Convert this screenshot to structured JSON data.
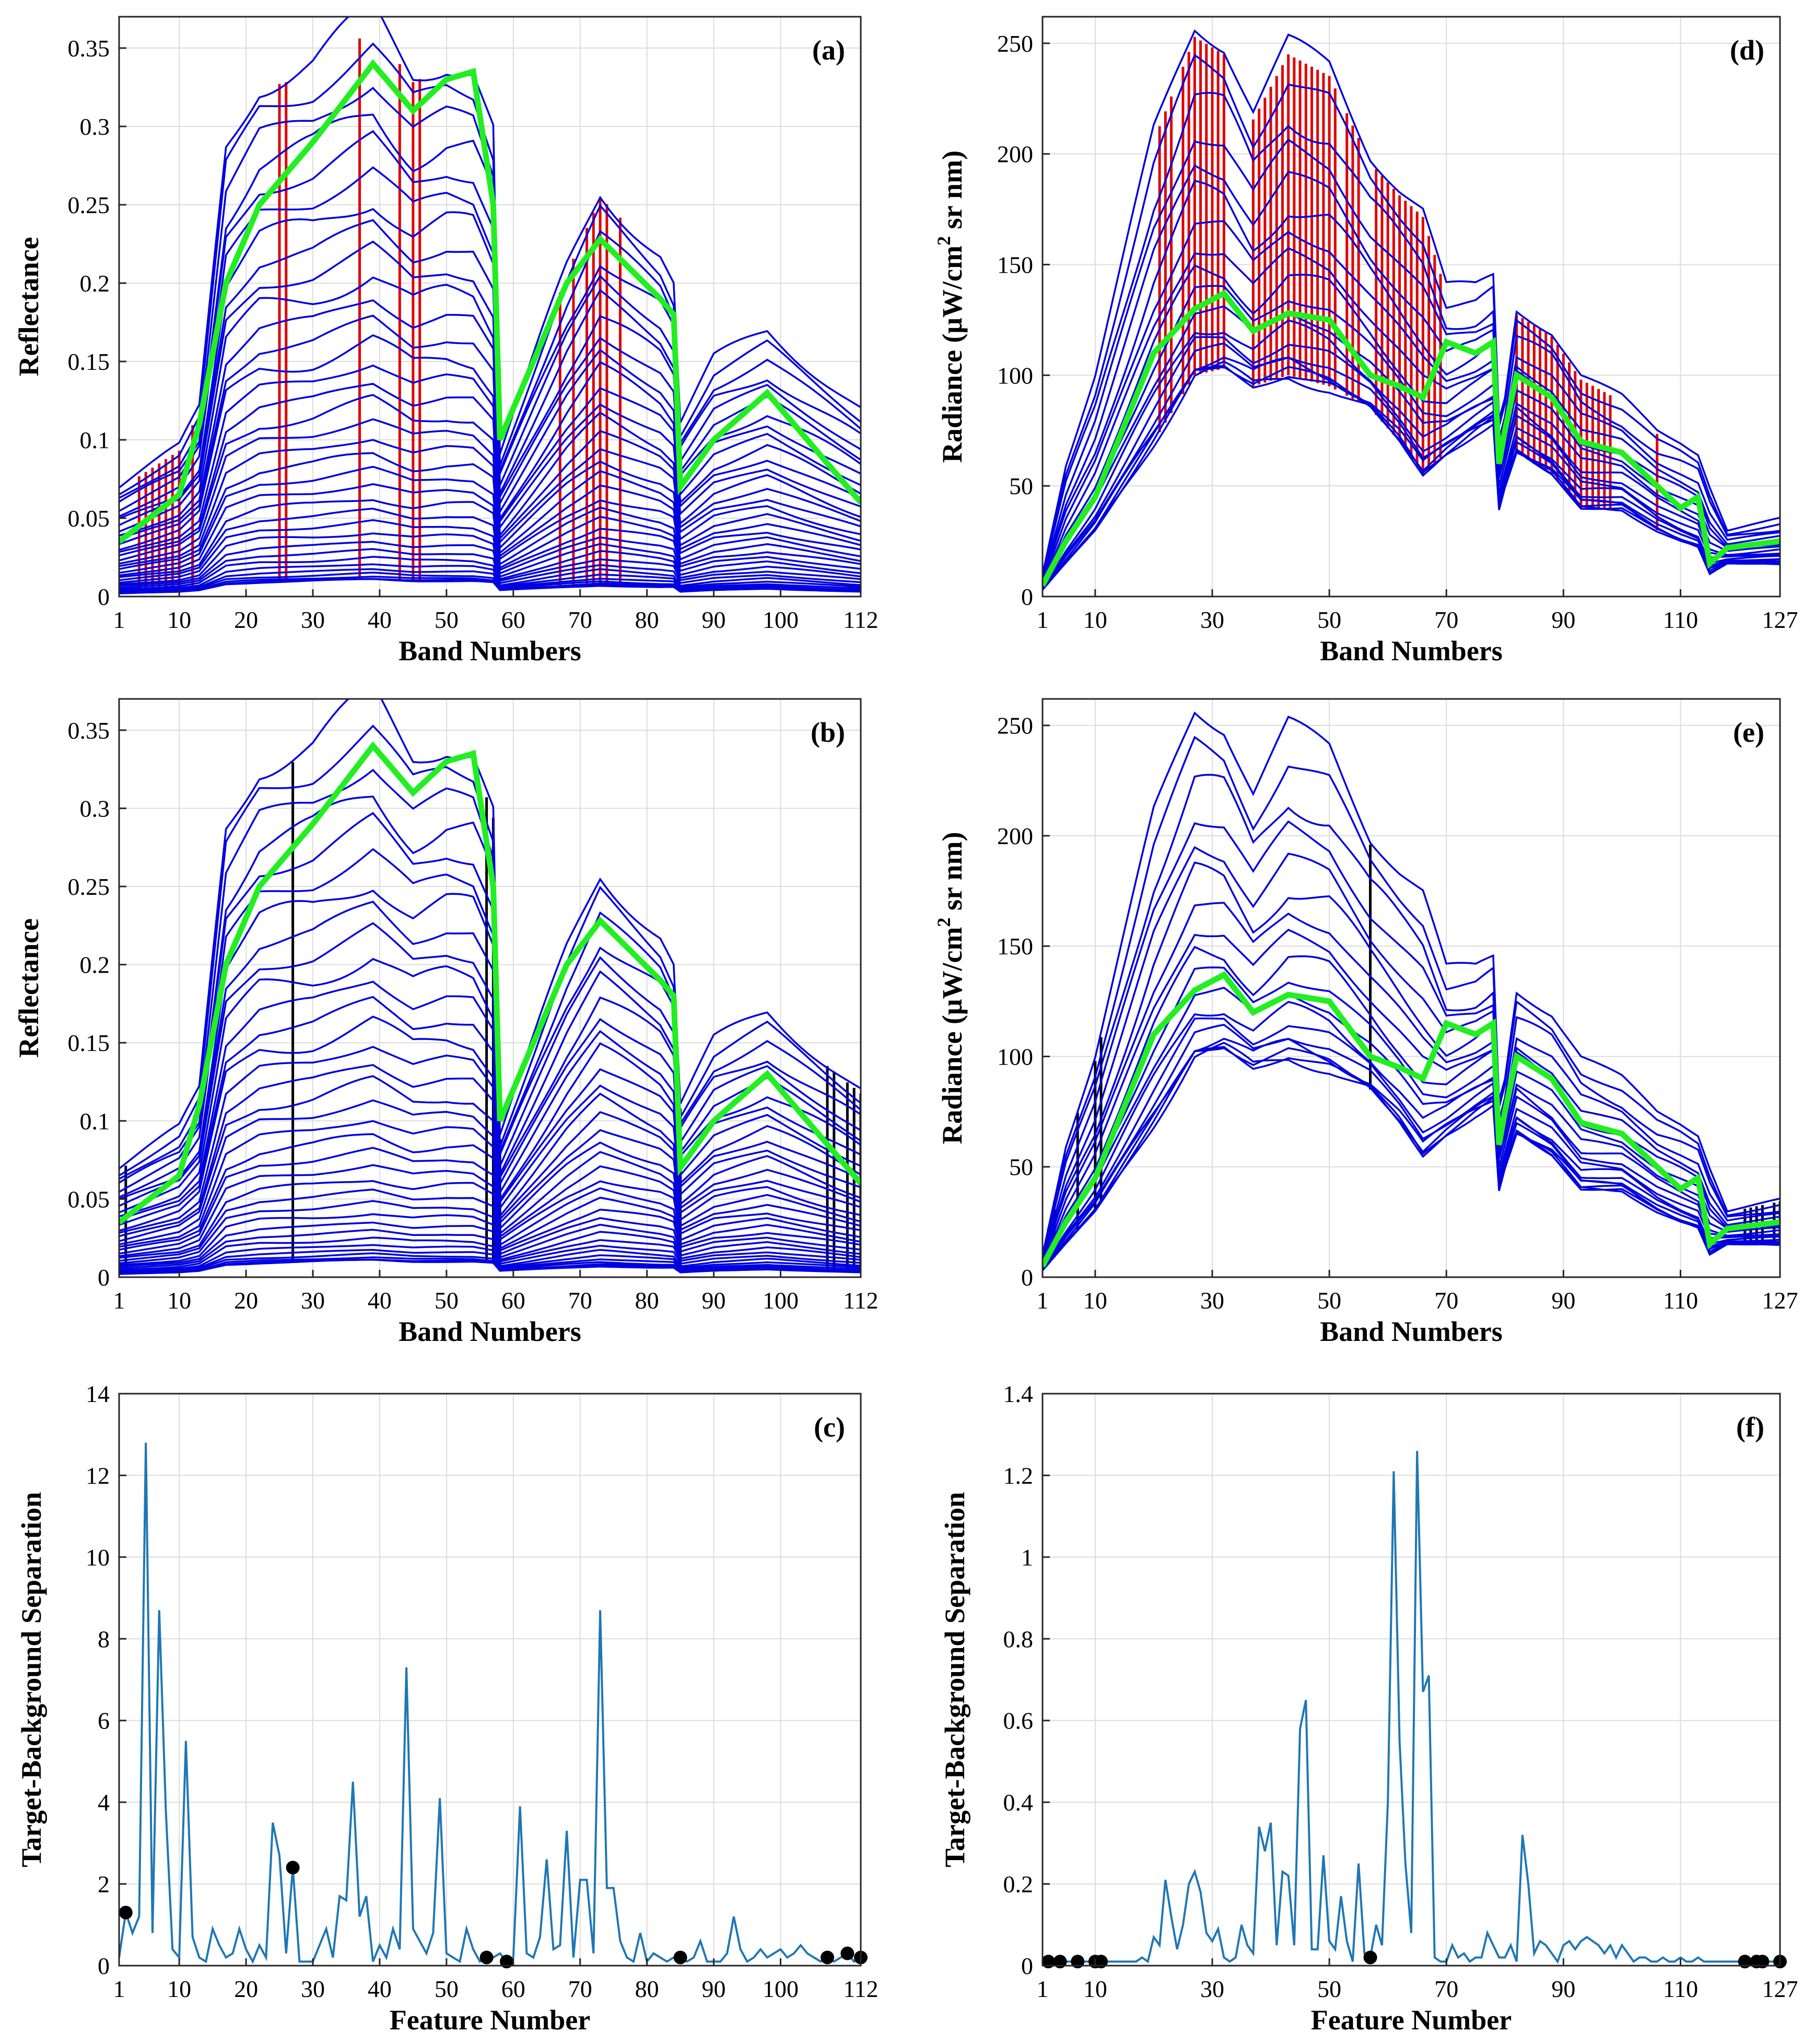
{
  "colors": {
    "spectrum": "#0000e0",
    "mean": "#22ee22",
    "selected_red": "#e00000",
    "selected_black": "#000000",
    "separation": "#1f77b4"
  },
  "chart_data": [
    {
      "id": "a",
      "panel_label": "(a)",
      "type": "line",
      "xlabel": "Band Numbers",
      "ylabel": "Reflectance",
      "xlim": [
        1,
        112
      ],
      "ylim": [
        0,
        0.37
      ],
      "xticks": [
        1,
        10,
        20,
        30,
        40,
        50,
        60,
        70,
        80,
        90,
        100,
        112
      ],
      "yticks": [
        0,
        0.05,
        0.1,
        0.15,
        0.2,
        0.25,
        0.3,
        0.35
      ],
      "ytick_labels": [
        "0",
        "0.05",
        "0.1",
        "0.15",
        "0.2",
        "0.25",
        "0.3",
        "0.35"
      ],
      "grid": true,
      "key_x": [
        1,
        10,
        13,
        17,
        22,
        30,
        39,
        45,
        50,
        54,
        57,
        58,
        68,
        73,
        82,
        84,
        85,
        90,
        98,
        112
      ],
      "series_key": [
        {
          "name": "spectrum-top",
          "values": [
            0.07,
            0.095,
            0.12,
            0.29,
            0.33,
            0.34,
            0.37,
            0.335,
            0.345,
            0.34,
            0.3,
            0.09,
            0.21,
            0.26,
            0.22,
            0.2,
            0.11,
            0.15,
            0.17,
            0.12
          ]
        },
        {
          "name": "spectrum-bottom",
          "values": [
            0.002,
            0.003,
            0.004,
            0.008,
            0.009,
            0.01,
            0.011,
            0.01,
            0.01,
            0.01,
            0.009,
            0.004,
            0.006,
            0.007,
            0.006,
            0.006,
            0.003,
            0.004,
            0.005,
            0.003
          ]
        },
        {
          "name": "mean",
          "values": [
            0.035,
            0.065,
            0.11,
            0.2,
            0.25,
            0.29,
            0.34,
            0.31,
            0.33,
            0.335,
            0.25,
            0.1,
            0.2,
            0.228,
            0.19,
            0.18,
            0.07,
            0.1,
            0.13,
            0.06
          ]
        }
      ],
      "n_spectra": 34,
      "selected_bands": [
        4,
        5,
        6,
        7,
        8,
        9,
        10,
        12,
        25,
        26,
        37,
        43,
        45,
        46,
        67,
        69,
        71,
        72,
        73,
        74,
        76
      ],
      "selected_color": "red"
    },
    {
      "id": "b",
      "panel_label": "(b)",
      "type": "line",
      "xlabel": "Band Numbers",
      "ylabel": "Reflectance",
      "xlim": [
        1,
        112
      ],
      "ylim": [
        0,
        0.37
      ],
      "xticks": [
        1,
        10,
        20,
        30,
        40,
        50,
        60,
        70,
        80,
        90,
        100,
        112
      ],
      "yticks": [
        0,
        0.05,
        0.1,
        0.15,
        0.2,
        0.25,
        0.3,
        0.35
      ],
      "ytick_labels": [
        "0",
        "0.05",
        "0.1",
        "0.15",
        "0.2",
        "0.25",
        "0.3",
        "0.35"
      ],
      "grid": true,
      "key_x": [
        1,
        10,
        13,
        17,
        22,
        30,
        39,
        45,
        50,
        54,
        57,
        58,
        68,
        73,
        82,
        84,
        85,
        90,
        98,
        112
      ],
      "series_key": [
        {
          "name": "spectrum-top",
          "values": [
            0.07,
            0.095,
            0.12,
            0.29,
            0.33,
            0.34,
            0.37,
            0.335,
            0.345,
            0.34,
            0.3,
            0.09,
            0.21,
            0.26,
            0.22,
            0.2,
            0.11,
            0.15,
            0.17,
            0.12
          ]
        },
        {
          "name": "spectrum-bottom",
          "values": [
            0.002,
            0.003,
            0.004,
            0.008,
            0.009,
            0.01,
            0.011,
            0.01,
            0.01,
            0.01,
            0.009,
            0.004,
            0.006,
            0.007,
            0.006,
            0.006,
            0.003,
            0.004,
            0.005,
            0.003
          ]
        },
        {
          "name": "mean",
          "values": [
            0.035,
            0.065,
            0.11,
            0.2,
            0.25,
            0.29,
            0.34,
            0.31,
            0.33,
            0.335,
            0.25,
            0.1,
            0.2,
            0.228,
            0.19,
            0.18,
            0.07,
            0.1,
            0.13,
            0.06
          ]
        }
      ],
      "n_spectra": 34,
      "selected_bands": [
        2,
        27,
        56,
        57,
        58,
        85,
        107,
        108,
        110,
        111,
        112
      ],
      "selected_color": "black"
    },
    {
      "id": "c",
      "panel_label": "(c)",
      "type": "line",
      "xlabel": "Feature Number",
      "ylabel": "Target-Background Separation",
      "xlim": [
        1,
        112
      ],
      "ylim": [
        0,
        14
      ],
      "xticks": [
        1,
        10,
        20,
        30,
        40,
        50,
        60,
        70,
        80,
        90,
        100,
        112
      ],
      "yticks": [
        0,
        2,
        4,
        6,
        8,
        10,
        12,
        14
      ],
      "ytick_labels": [
        "0",
        "2",
        "4",
        "6",
        "8",
        "10",
        "12",
        "14"
      ],
      "grid": true,
      "x": [
        1,
        2,
        3,
        4,
        5,
        6,
        7,
        8,
        9,
        10,
        11,
        12,
        13,
        14,
        15,
        16,
        17,
        18,
        19,
        20,
        21,
        22,
        23,
        24,
        25,
        26,
        27,
        28,
        29,
        30,
        31,
        32,
        33,
        34,
        35,
        36,
        37,
        38,
        39,
        40,
        41,
        42,
        43,
        44,
        45,
        46,
        47,
        48,
        49,
        50,
        51,
        52,
        53,
        54,
        55,
        56,
        57,
        58,
        59,
        60,
        61,
        62,
        63,
        64,
        65,
        66,
        67,
        68,
        69,
        70,
        71,
        72,
        73,
        74,
        75,
        76,
        77,
        78,
        79,
        80,
        81,
        82,
        83,
        84,
        85,
        86,
        87,
        88,
        89,
        90,
        91,
        92,
        93,
        94,
        95,
        96,
        97,
        98,
        99,
        100,
        101,
        102,
        103,
        104,
        105,
        106,
        107,
        108,
        109,
        110,
        111,
        112
      ],
      "values": [
        0.2,
        1.3,
        0.8,
        1.2,
        12.8,
        0.8,
        8.7,
        3.8,
        0.4,
        0.2,
        5.5,
        0.7,
        0.2,
        0.1,
        0.9,
        0.5,
        0.2,
        0.3,
        0.9,
        0.4,
        0.1,
        0.5,
        0.2,
        3.5,
        2.7,
        0.3,
        2.4,
        0.1,
        0.1,
        0.1,
        0.5,
        0.9,
        0.2,
        1.7,
        1.6,
        4.5,
        1.2,
        1.7,
        0.1,
        0.5,
        0.2,
        0.9,
        0.4,
        7.3,
        0.9,
        0.6,
        0.3,
        0.8,
        4.1,
        0.3,
        0.2,
        0.1,
        0.9,
        0.4,
        0.1,
        0.2,
        0.2,
        0.3,
        0.1,
        0.2,
        3.9,
        0.3,
        0.2,
        0.7,
        2.6,
        0.4,
        0.5,
        3.3,
        0.2,
        2.1,
        2.1,
        0.3,
        8.7,
        1.9,
        1.9,
        0.6,
        0.2,
        0.1,
        0.8,
        0.1,
        0.3,
        0.2,
        0.1,
        0.2,
        0.2,
        0.1,
        0.2,
        0.6,
        0.1,
        0.1,
        0.1,
        0.3,
        1.2,
        0.4,
        0.1,
        0.2,
        0.4,
        0.2,
        0.3,
        0.4,
        0.2,
        0.3,
        0.5,
        0.3,
        0.2,
        0.1,
        0.2,
        0.1,
        0.2,
        0.3,
        0.1,
        0.2
      ],
      "markers": [
        2,
        27,
        56,
        59,
        85,
        107,
        110,
        112
      ]
    },
    {
      "id": "d",
      "panel_label": "(d)",
      "type": "line",
      "xlabel": "Band Numbers",
      "ylabel": "Radiance (μW/cm² sr nm)",
      "ylabel_parts": {
        "pre": "Radiance (μW/cm",
        "sup": "2",
        "post": " sr nm)"
      },
      "xlim": [
        1,
        127
      ],
      "ylim": [
        0,
        262
      ],
      "xticks": [
        1,
        10,
        30,
        50,
        70,
        90,
        110,
        127
      ],
      "yticks": [
        0,
        50,
        100,
        150,
        200,
        250
      ],
      "ytick_labels": [
        "0",
        "50",
        "100",
        "150",
        "200",
        "250"
      ],
      "grid": true,
      "key_x": [
        1,
        5,
        10,
        20,
        27,
        32,
        37,
        43,
        50,
        57,
        62,
        66,
        70,
        75,
        78,
        79,
        80,
        82,
        88,
        93,
        100,
        106,
        110,
        113,
        115,
        118,
        127
      ],
      "series_key": [
        {
          "name": "spectrum-top",
          "values": [
            10,
            60,
            100,
            210,
            258,
            250,
            220,
            250,
            240,
            200,
            185,
            175,
            140,
            140,
            145,
            80,
            90,
            130,
            120,
            100,
            90,
            75,
            70,
            65,
            50,
            30,
            35
          ]
        },
        {
          "name": "spectrum-bottom",
          "values": [
            3,
            15,
            30,
            70,
            100,
            103,
            95,
            100,
            95,
            85,
            70,
            55,
            65,
            75,
            80,
            40,
            50,
            65,
            55,
            40,
            40,
            30,
            25,
            22,
            10,
            15,
            15
          ]
        },
        {
          "name": "mean",
          "values": [
            5,
            25,
            45,
            110,
            130,
            137,
            120,
            128,
            125,
            100,
            95,
            90,
            115,
            110,
            115,
            60,
            75,
            100,
            90,
            70,
            65,
            50,
            40,
            45,
            15,
            22,
            25
          ]
        }
      ],
      "n_spectra": 18,
      "selected_bands": [
        21,
        22,
        23,
        25,
        26,
        27,
        28,
        29,
        30,
        31,
        32,
        37,
        38,
        39,
        40,
        41,
        42,
        43,
        44,
        45,
        46,
        47,
        48,
        49,
        50,
        51,
        53,
        54,
        55,
        58,
        59,
        60,
        61,
        62,
        63,
        64,
        65,
        66,
        67,
        68,
        69,
        82,
        83,
        84,
        85,
        86,
        87,
        88,
        89,
        90,
        91,
        92,
        93,
        94,
        95,
        96,
        97,
        98,
        106
      ],
      "selected_color": "red"
    },
    {
      "id": "e",
      "panel_label": "(e)",
      "type": "line",
      "xlabel": "Band Numbers",
      "ylabel": "Radiance (μW/cm² sr nm)",
      "ylabel_parts": {
        "pre": "Radiance (μW/cm",
        "sup": "2",
        "post": " sr nm)"
      },
      "xlim": [
        1,
        127
      ],
      "ylim": [
        0,
        262
      ],
      "xticks": [
        1,
        10,
        30,
        50,
        70,
        90,
        110,
        127
      ],
      "yticks": [
        0,
        50,
        100,
        150,
        200,
        250
      ],
      "ytick_labels": [
        "0",
        "50",
        "100",
        "150",
        "200",
        "250"
      ],
      "grid": true,
      "key_x": [
        1,
        5,
        10,
        20,
        27,
        32,
        37,
        43,
        50,
        57,
        62,
        66,
        70,
        75,
        78,
        79,
        80,
        82,
        88,
        93,
        100,
        106,
        110,
        113,
        115,
        118,
        127
      ],
      "series_key": [
        {
          "name": "spectrum-top",
          "values": [
            10,
            60,
            100,
            210,
            258,
            250,
            220,
            250,
            240,
            200,
            185,
            175,
            140,
            140,
            145,
            80,
            90,
            130,
            120,
            100,
            90,
            75,
            70,
            65,
            50,
            30,
            35
          ]
        },
        {
          "name": "spectrum-bottom",
          "values": [
            3,
            15,
            30,
            70,
            100,
            103,
            95,
            100,
            95,
            85,
            70,
            55,
            65,
            75,
            80,
            40,
            50,
            65,
            55,
            40,
            40,
            30,
            25,
            22,
            10,
            15,
            15
          ]
        },
        {
          "name": "mean",
          "values": [
            5,
            25,
            45,
            110,
            130,
            137,
            120,
            128,
            125,
            100,
            95,
            90,
            115,
            110,
            115,
            60,
            75,
            100,
            90,
            70,
            65,
            50,
            40,
            45,
            15,
            22,
            25
          ]
        }
      ],
      "n_spectra": 18,
      "selected_bands": [
        2,
        3,
        7,
        10,
        11,
        57,
        121,
        122,
        123,
        124,
        126,
        127
      ],
      "selected_color": "black"
    },
    {
      "id": "f",
      "panel_label": "(f)",
      "type": "line",
      "xlabel": "Feature Number",
      "ylabel": "Target-Background Separation",
      "xlim": [
        1,
        127
      ],
      "ylim": [
        0,
        1.4
      ],
      "xticks": [
        1,
        10,
        30,
        50,
        70,
        90,
        110,
        127
      ],
      "yticks": [
        0,
        0.2,
        0.4,
        0.6,
        0.8,
        1,
        1.2,
        1.4
      ],
      "ytick_labels": [
        "0",
        "0.2",
        "0.4",
        "0.6",
        "0.8",
        "1",
        "1.2",
        "1.4"
      ],
      "grid": true,
      "x": [
        1,
        2,
        3,
        4,
        5,
        6,
        7,
        8,
        9,
        10,
        11,
        12,
        13,
        14,
        15,
        16,
        17,
        18,
        19,
        20,
        21,
        22,
        23,
        24,
        25,
        26,
        27,
        28,
        29,
        30,
        31,
        32,
        33,
        34,
        35,
        36,
        37,
        38,
        39,
        40,
        41,
        42,
        43,
        44,
        45,
        46,
        47,
        48,
        49,
        50,
        51,
        52,
        53,
        54,
        55,
        56,
        57,
        58,
        59,
        60,
        61,
        62,
        63,
        64,
        65,
        66,
        67,
        68,
        69,
        70,
        71,
        72,
        73,
        74,
        75,
        76,
        77,
        78,
        79,
        80,
        81,
        82,
        83,
        84,
        85,
        86,
        87,
        88,
        89,
        90,
        91,
        92,
        93,
        94,
        95,
        96,
        97,
        98,
        99,
        100,
        101,
        102,
        103,
        104,
        105,
        106,
        107,
        108,
        109,
        110,
        111,
        112,
        113,
        114,
        115,
        116,
        117,
        118,
        119,
        120,
        121,
        122,
        123,
        124,
        125,
        126,
        127
      ],
      "values": [
        0.01,
        0.01,
        0.01,
        0.01,
        0.01,
        0.01,
        0.01,
        0.01,
        0.01,
        0.01,
        0.01,
        0.01,
        0.01,
        0.01,
        0.01,
        0.01,
        0.01,
        0.02,
        0.01,
        0.07,
        0.05,
        0.21,
        0.12,
        0.04,
        0.1,
        0.2,
        0.23,
        0.18,
        0.08,
        0.06,
        0.09,
        0.02,
        0.01,
        0.02,
        0.1,
        0.05,
        0.03,
        0.34,
        0.28,
        0.35,
        0.05,
        0.23,
        0.22,
        0.05,
        0.58,
        0.65,
        0.04,
        0.04,
        0.27,
        0.06,
        0.04,
        0.17,
        0.06,
        0.01,
        0.25,
        0.03,
        0.02,
        0.1,
        0.05,
        0.4,
        1.21,
        0.55,
        0.25,
        0.08,
        1.26,
        0.67,
        0.71,
        0.02,
        0.01,
        0.01,
        0.05,
        0.02,
        0.03,
        0.01,
        0.02,
        0.02,
        0.08,
        0.05,
        0.02,
        0.02,
        0.05,
        0.01,
        0.32,
        0.2,
        0.03,
        0.06,
        0.05,
        0.03,
        0.01,
        0.05,
        0.06,
        0.04,
        0.06,
        0.07,
        0.06,
        0.05,
        0.03,
        0.05,
        0.02,
        0.05,
        0.03,
        0.01,
        0.02,
        0.02,
        0.01,
        0.01,
        0.02,
        0.01,
        0.01,
        0.02,
        0.01,
        0.01,
        0.02,
        0.01,
        0.01,
        0.01,
        0.01,
        0.01,
        0.01,
        0.01,
        0.01,
        0.01,
        0.01,
        0.01,
        0.01,
        0.01,
        0.01
      ],
      "markers": [
        2,
        4,
        7,
        10,
        11,
        57,
        121,
        123,
        124,
        127
      ]
    }
  ]
}
